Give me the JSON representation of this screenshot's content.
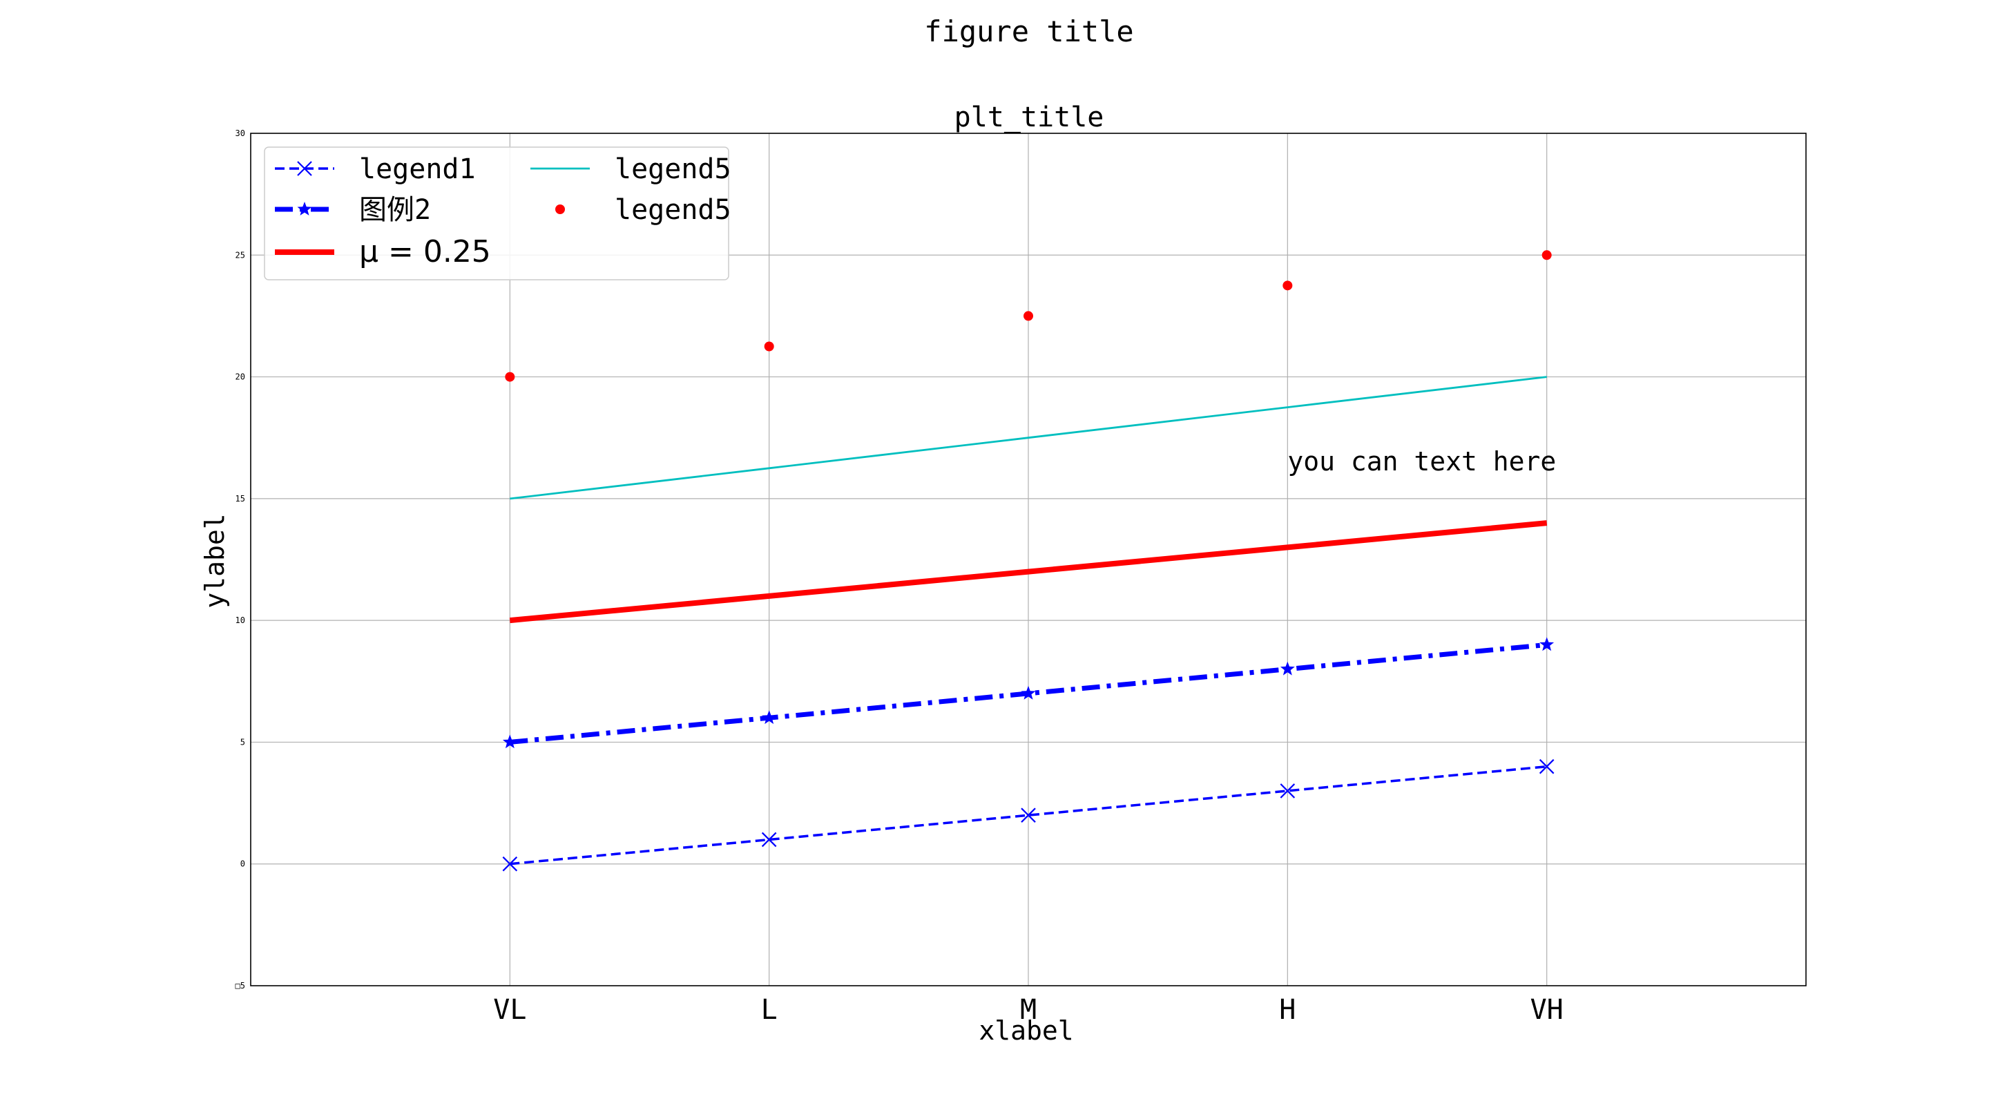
{
  "figure_title": "figure title",
  "chart_data": {
    "type": "line",
    "title": "plt_title",
    "xlabel": "xlabel",
    "ylabel": "ylabel",
    "categories": [
      "VL",
      "L",
      "M",
      "H",
      "VH"
    ],
    "xlim": [
      -1,
      5
    ],
    "ylim": [
      -5,
      30
    ],
    "y_ticks": [
      -5,
      0,
      5,
      10,
      15,
      20,
      25,
      30
    ],
    "y_tick_labels": [
      "□5",
      "0",
      "5",
      "10",
      "15",
      "20",
      "25",
      "30"
    ],
    "grid": true,
    "legend": {
      "placement": "top-left",
      "columns": 2
    },
    "series": [
      {
        "name": "legend1",
        "type": "line",
        "values": [
          0,
          1,
          2,
          3,
          4
        ],
        "color": "#0000ff",
        "line_style": "dashed",
        "marker": "x"
      },
      {
        "name": "图例2",
        "type": "line",
        "values": [
          5,
          6,
          7,
          8,
          9
        ],
        "color": "#0000ff",
        "line_style": "dash-dot",
        "marker": "star"
      },
      {
        "name": "μ = 0.25",
        "type": "line",
        "values": [
          10,
          11,
          12,
          13,
          14
        ],
        "color": "#ff0000",
        "line_style": "solid",
        "marker": "none"
      },
      {
        "name": "legend5",
        "type": "line",
        "values": [
          15,
          16.25,
          17.5,
          18.75,
          20
        ],
        "color": "#00bfbf",
        "line_style": "solid",
        "marker": "none"
      },
      {
        "name": "legend5",
        "type": "scatter",
        "values": [
          20,
          21.25,
          22.5,
          23.75,
          25
        ],
        "color": "#ff0000",
        "line_style": "none",
        "marker": "dot"
      }
    ],
    "annotations": [
      {
        "text": "you can text here",
        "x": 3,
        "y": 16.5
      }
    ]
  }
}
